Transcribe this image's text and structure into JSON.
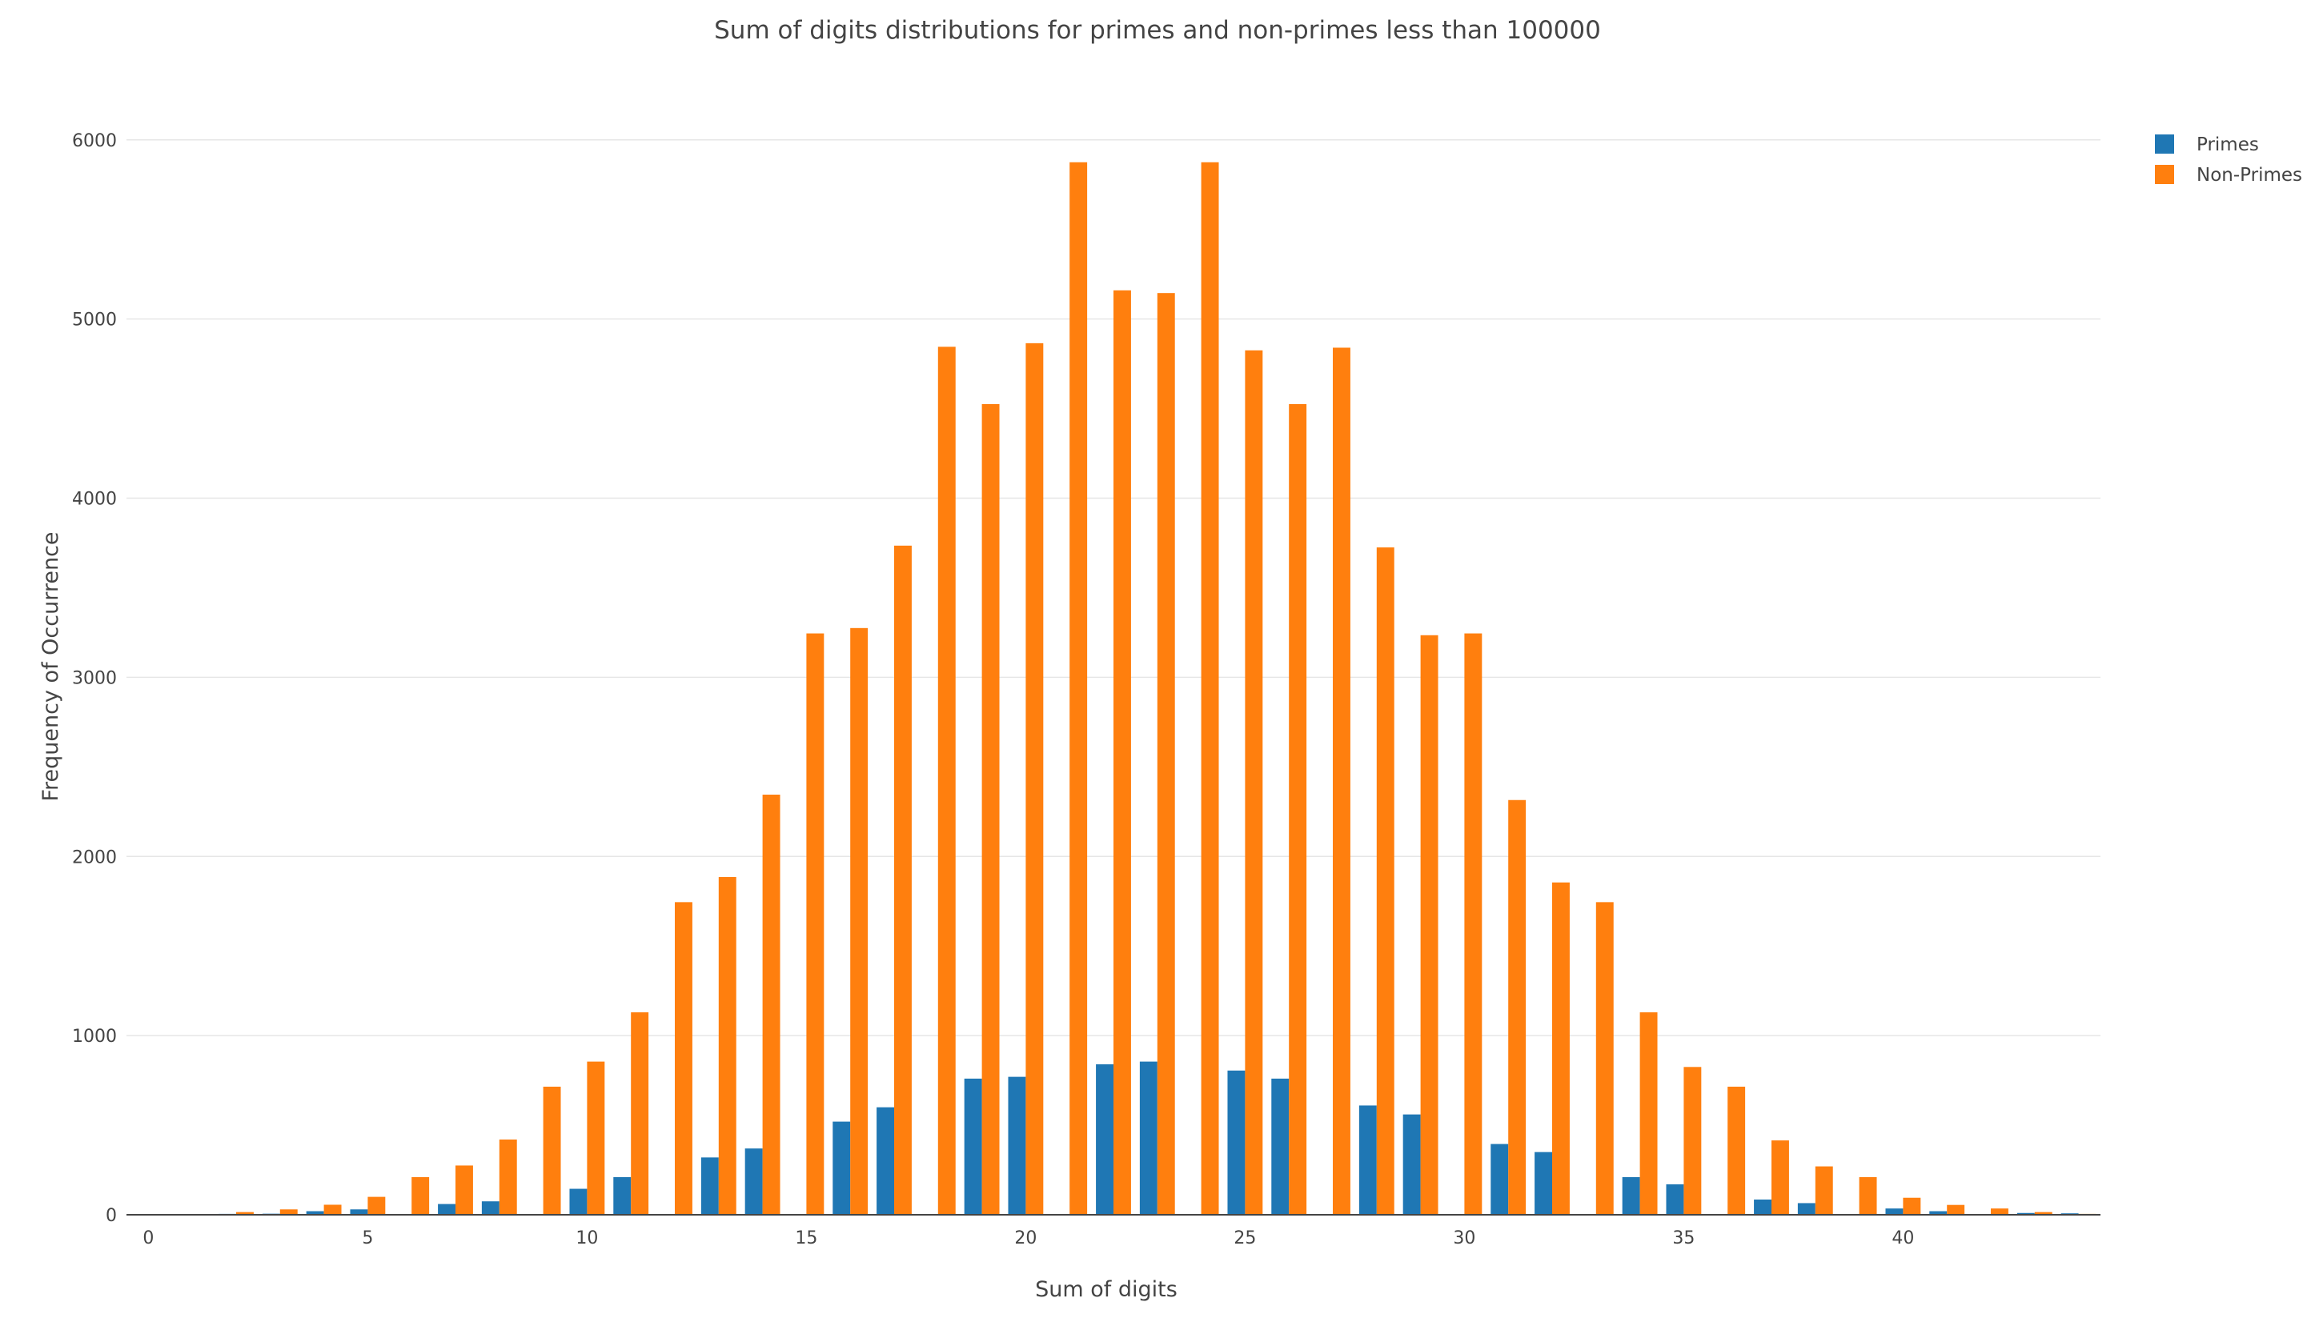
{
  "chart_data": {
    "type": "bar",
    "title": "Sum of digits distributions for primes and non-primes less than 100000",
    "xlabel": "Sum of digits",
    "ylabel": "Frequency of Occurrence",
    "xlim": [
      -0.5,
      44.5
    ],
    "ylim": [
      0,
      6200
    ],
    "x_ticks": [
      0,
      5,
      10,
      15,
      20,
      25,
      30,
      35,
      40
    ],
    "y_ticks": [
      0,
      1000,
      2000,
      3000,
      4000,
      5000,
      6000
    ],
    "grid": true,
    "legend_position": "top-right",
    "x": [
      0,
      1,
      2,
      3,
      4,
      5,
      6,
      7,
      8,
      9,
      10,
      11,
      12,
      13,
      14,
      15,
      16,
      17,
      18,
      19,
      20,
      21,
      22,
      23,
      24,
      25,
      26,
      27,
      28,
      29,
      30,
      31,
      32,
      33,
      34,
      35,
      36,
      37,
      38,
      39,
      40,
      41,
      42,
      43,
      44
    ],
    "series": [
      {
        "name": "Primes",
        "color": "#1f77b4",
        "values": [
          0,
          1,
          5,
          6,
          20,
          30,
          0,
          60,
          75,
          0,
          145,
          210,
          0,
          320,
          370,
          0,
          520,
          600,
          0,
          760,
          770,
          0,
          840,
          855,
          0,
          805,
          760,
          0,
          610,
          560,
          0,
          395,
          350,
          0,
          210,
          170,
          0,
          85,
          65,
          0,
          35,
          20,
          0,
          10,
          8
        ]
      },
      {
        "name": "Non-Primes",
        "color": "#ff7f0e",
        "values": [
          0,
          4,
          15,
          30,
          56,
          100,
          210,
          275,
          420,
          715,
          855,
          1130,
          1745,
          1885,
          2345,
          3245,
          3275,
          3735,
          4845,
          4525,
          4865,
          5875,
          5160,
          5145,
          5875,
          4825,
          4525,
          4840,
          3725,
          3235,
          3245,
          2315,
          1855,
          1745,
          1130,
          825,
          715,
          415,
          270,
          210,
          95,
          55,
          35,
          15,
          5
        ]
      }
    ]
  }
}
